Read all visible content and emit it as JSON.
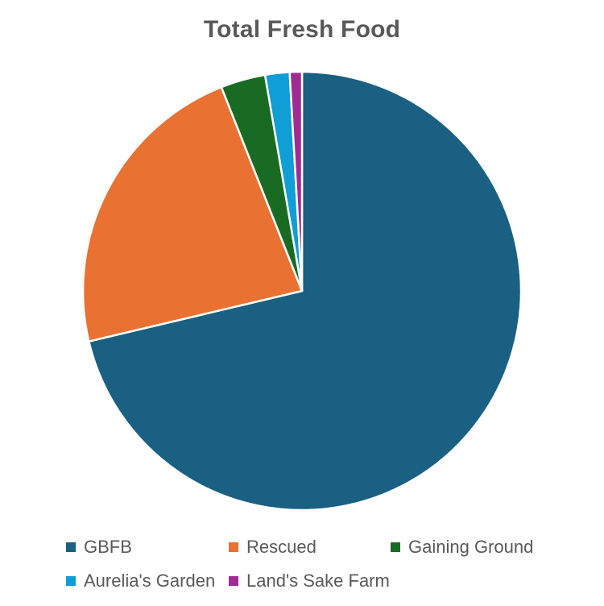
{
  "chart_data": {
    "type": "pie",
    "title": "Total Fresh Food",
    "categories": [
      "GBFB",
      "Rescued",
      "Gaining Ground",
      "Aurelia's Garden",
      "Land's Sake Farm"
    ],
    "values": [
      71.3,
      22.7,
      3.3,
      1.8,
      0.9
    ],
    "unit": "percent (estimated)",
    "colors": [
      "#1a6082",
      "#e97132",
      "#196b24",
      "#0f9ed5",
      "#a02b93"
    ],
    "legend_position": "bottom",
    "start_angle_deg": 0,
    "direction": "clockwise"
  }
}
